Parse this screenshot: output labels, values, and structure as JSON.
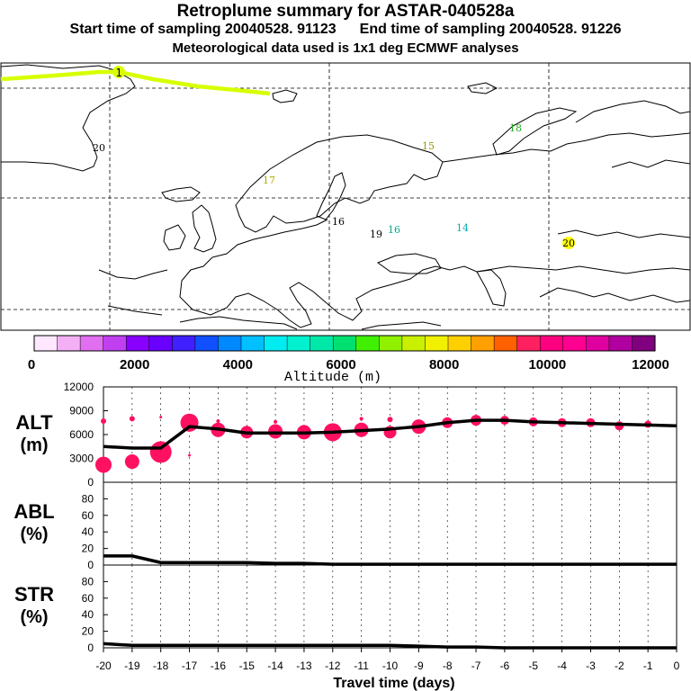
{
  "header": {
    "title": "Retroplume summary for ASTAR-040528a",
    "start_label": "Start time of sampling 20040528. 91123",
    "end_label": "End time of sampling 20040528. 91226",
    "met_label": "Meteorological data used is 1x1 deg ECMWF analyses"
  },
  "map": {
    "plume_color": "#d8ff00",
    "plume_track_label": "1",
    "day_labels": [
      {
        "text": "20",
        "color": "#000000"
      },
      {
        "text": "18",
        "color": "#22aa22"
      },
      {
        "text": "15",
        "color": "#999900"
      },
      {
        "text": "17",
        "color": "#aaaa00"
      },
      {
        "text": "16",
        "color": "#000000"
      },
      {
        "text": "19",
        "color": "#000000"
      },
      {
        "text": "16",
        "color": "#00aa88"
      },
      {
        "text": "14",
        "color": "#00aaaa"
      },
      {
        "text": "20",
        "color": "#000000",
        "highlight": "#ffff00"
      }
    ]
  },
  "colorbar": {
    "colors": [
      "#ffe8ff",
      "#f4b0f4",
      "#e070f0",
      "#c040f0",
      "#8800ff",
      "#6a00ff",
      "#4020ff",
      "#1050ff",
      "#0088ff",
      "#00c0ff",
      "#00ecf0",
      "#00f0d0",
      "#00e8a8",
      "#00e070",
      "#40f000",
      "#90f000",
      "#c8f000",
      "#f0f000",
      "#ffd000",
      "#ffa000",
      "#ff6000",
      "#ff2060",
      "#ff0080",
      "#ff0090",
      "#e000a0",
      "#b000a0",
      "#800080"
    ],
    "tick_labels": [
      "0",
      "2000",
      "4000",
      "6000",
      "8000",
      "10000",
      "12000"
    ],
    "label": "Altitude (m)"
  },
  "chart_data": [
    {
      "type": "line",
      "panel": "ALT",
      "ylabel": "ALT (m)",
      "ylabel_line1": "ALT",
      "ylabel_line2": "(m)",
      "ylim": [
        0,
        12000
      ],
      "yticks": [
        "12000",
        "9000",
        "6000",
        "3000",
        "0"
      ],
      "x": [
        -20,
        -19,
        -18,
        -17,
        -16,
        -15,
        -14,
        -13,
        -12,
        -11,
        -10,
        -9,
        -8,
        -7,
        -6,
        -5,
        -4,
        -3,
        -2,
        -1,
        0
      ],
      "line_values": [
        4500,
        4300,
        4300,
        7000,
        6700,
        6200,
        6200,
        6200,
        6300,
        6500,
        6700,
        7000,
        7500,
        7800,
        7800,
        7600,
        7500,
        7400,
        7300,
        7200,
        7100
      ],
      "marker_color": "#ff1060",
      "markers": [
        {
          "x": -20,
          "y": 7700,
          "r": 3
        },
        {
          "x": -20,
          "y": 2200,
          "r": 9
        },
        {
          "x": -19,
          "y": 8000,
          "r": 3
        },
        {
          "x": -19,
          "y": 2600,
          "r": 8
        },
        {
          "x": -18,
          "y": 3800,
          "r": 12
        },
        {
          "x": -18,
          "y": 8200,
          "r": 1.5
        },
        {
          "x": -17,
          "y": 7500,
          "r": 10
        },
        {
          "x": -17,
          "y": 3400,
          "r": 1.5
        },
        {
          "x": -16,
          "y": 6600,
          "r": 8
        },
        {
          "x": -16,
          "y": 7700,
          "r": 2
        },
        {
          "x": -15,
          "y": 6300,
          "r": 7
        },
        {
          "x": -14,
          "y": 6400,
          "r": 8
        },
        {
          "x": -14,
          "y": 7600,
          "r": 2
        },
        {
          "x": -13,
          "y": 6300,
          "r": 8
        },
        {
          "x": -12,
          "y": 6300,
          "r": 10
        },
        {
          "x": -11,
          "y": 6600,
          "r": 8
        },
        {
          "x": -11,
          "y": 8000,
          "r": 2
        },
        {
          "x": -10,
          "y": 6300,
          "r": 7
        },
        {
          "x": -10,
          "y": 7900,
          "r": 3
        },
        {
          "x": -9,
          "y": 7000,
          "r": 8
        },
        {
          "x": -8,
          "y": 7500,
          "r": 6
        },
        {
          "x": -7,
          "y": 7800,
          "r": 6
        },
        {
          "x": -6,
          "y": 7800,
          "r": 5
        },
        {
          "x": -5,
          "y": 7600,
          "r": 5
        },
        {
          "x": -4,
          "y": 7500,
          "r": 5
        },
        {
          "x": -3,
          "y": 7500,
          "r": 5
        },
        {
          "x": -2,
          "y": 7100,
          "r": 5
        },
        {
          "x": -1,
          "y": 7300,
          "r": 4
        }
      ]
    },
    {
      "type": "line",
      "panel": "ABL",
      "ylabel": "ABL (%)",
      "ylabel_line1": "ABL",
      "ylabel_line2": "(%)",
      "ylim": [
        0,
        100
      ],
      "yticks": [
        "80",
        "60",
        "40",
        "20",
        "0"
      ],
      "x": [
        -20,
        -19,
        -18,
        -17,
        -16,
        -15,
        -14,
        -13,
        -12,
        -11,
        -10,
        -9,
        -8,
        -7,
        -6,
        -5,
        -4,
        -3,
        -2,
        -1,
        0
      ],
      "line_values": [
        11,
        11,
        3,
        3,
        3,
        3,
        2,
        2,
        1,
        1,
        1,
        1,
        1,
        1,
        1,
        1,
        1,
        1,
        1,
        1,
        1
      ]
    },
    {
      "type": "line",
      "panel": "STR",
      "ylabel": "STR (%)",
      "ylabel_line1": "STR",
      "ylabel_line2": "(%)",
      "ylim": [
        0,
        100
      ],
      "yticks": [
        "80",
        "60",
        "40",
        "20",
        "0"
      ],
      "x": [
        -20,
        -19,
        -18,
        -17,
        -16,
        -15,
        -14,
        -13,
        -12,
        -11,
        -10,
        -9,
        -8,
        -7,
        -6,
        -5,
        -4,
        -3,
        -2,
        -1,
        0
      ],
      "line_values": [
        5,
        3,
        3,
        3,
        3,
        3,
        3,
        3,
        3,
        3,
        3,
        2,
        1,
        1,
        0,
        0,
        0,
        0,
        0,
        0,
        0
      ]
    }
  ],
  "xaxis": {
    "tick_labels": [
      "-20",
      "-19",
      "-18",
      "-17",
      "-16",
      "-15",
      "-14",
      "-13",
      "-12",
      "-11",
      "-10",
      "-9",
      "-8",
      "-7",
      "-6",
      "-5",
      "-4",
      "-3",
      "-2",
      "-1",
      "0"
    ],
    "label": "Travel time (days)"
  }
}
